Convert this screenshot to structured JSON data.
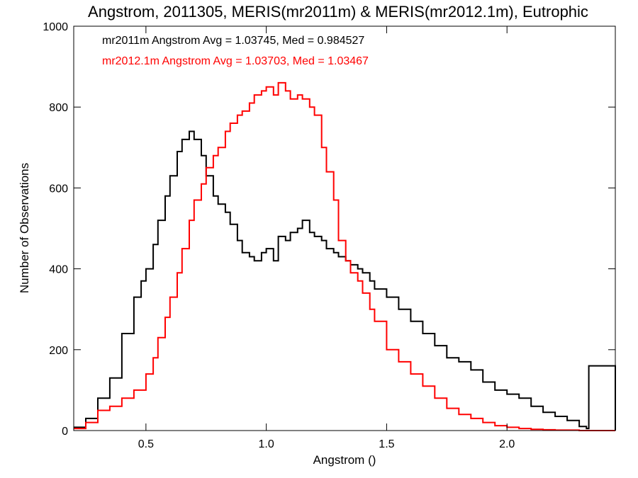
{
  "chart_data": {
    "type": "line",
    "style": "step histogram",
    "title": "Angstrom, 2011305, MERIS(mr2011m) & MERIS(mr2012.1m), Eutrophic",
    "xlabel": "Angstrom ()",
    "ylabel": "Number of Observations",
    "xlim": [
      0.2,
      2.45
    ],
    "ylim": [
      0,
      1000
    ],
    "x_ticks": [
      0.5,
      1.0,
      1.5,
      2.0
    ],
    "x_tick_labels": [
      "0.5",
      "1.0",
      "1.5",
      "2.0"
    ],
    "y_ticks": [
      0,
      200,
      400,
      600,
      800,
      1000
    ],
    "y_tick_labels": [
      "0",
      "200",
      "400",
      "600",
      "800",
      "1000"
    ],
    "grid": false,
    "annotations": [
      {
        "text": "mr2011m Angstrom Avg = 1.03745, Med = 0.984527",
        "color": "#000000"
      },
      {
        "text": "mr2012.1m Angstrom Avg = 1.03703, Med = 1.03467",
        "color": "#ff0000"
      }
    ],
    "series": [
      {
        "color": "#000000",
        "x": [
          0.2,
          0.25,
          0.3,
          0.35,
          0.4,
          0.45,
          0.48,
          0.5,
          0.53,
          0.55,
          0.58,
          0.6,
          0.63,
          0.65,
          0.68,
          0.7,
          0.73,
          0.75,
          0.78,
          0.8,
          0.83,
          0.85,
          0.88,
          0.9,
          0.93,
          0.95,
          0.98,
          1.0,
          1.03,
          1.05,
          1.08,
          1.1,
          1.13,
          1.15,
          1.18,
          1.2,
          1.23,
          1.25,
          1.28,
          1.3,
          1.33,
          1.35,
          1.38,
          1.4,
          1.43,
          1.45,
          1.5,
          1.55,
          1.6,
          1.65,
          1.7,
          1.75,
          1.8,
          1.85,
          1.9,
          1.95,
          2.0,
          2.05,
          2.1,
          2.15,
          2.2,
          2.25,
          2.3,
          2.33,
          2.34,
          2.45
        ],
        "y": [
          8,
          30,
          80,
          130,
          240,
          330,
          370,
          400,
          460,
          520,
          580,
          630,
          690,
          720,
          740,
          720,
          680,
          630,
          580,
          560,
          540,
          510,
          470,
          440,
          430,
          420,
          440,
          450,
          420,
          480,
          470,
          490,
          500,
          520,
          490,
          480,
          470,
          450,
          440,
          430,
          420,
          410,
          400,
          390,
          370,
          350,
          330,
          300,
          270,
          240,
          210,
          180,
          170,
          150,
          120,
          100,
          90,
          80,
          60,
          45,
          35,
          25,
          10,
          5,
          160,
          0
        ]
      },
      {
        "color": "#ff0000",
        "x": [
          0.2,
          0.25,
          0.3,
          0.35,
          0.4,
          0.45,
          0.5,
          0.53,
          0.55,
          0.58,
          0.6,
          0.63,
          0.65,
          0.68,
          0.7,
          0.73,
          0.75,
          0.78,
          0.8,
          0.83,
          0.85,
          0.88,
          0.9,
          0.93,
          0.95,
          0.98,
          1.0,
          1.03,
          1.05,
          1.08,
          1.1,
          1.13,
          1.15,
          1.18,
          1.2,
          1.23,
          1.25,
          1.28,
          1.3,
          1.33,
          1.35,
          1.38,
          1.4,
          1.43,
          1.45,
          1.5,
          1.55,
          1.6,
          1.65,
          1.7,
          1.75,
          1.8,
          1.85,
          1.9,
          1.95,
          2.0,
          2.05,
          2.1,
          2.15,
          2.2,
          2.3,
          2.45
        ],
        "y": [
          5,
          20,
          50,
          60,
          80,
          100,
          140,
          180,
          230,
          280,
          330,
          390,
          450,
          520,
          570,
          610,
          650,
          680,
          700,
          740,
          760,
          780,
          790,
          810,
          830,
          840,
          850,
          830,
          860,
          840,
          820,
          830,
          820,
          800,
          780,
          700,
          640,
          570,
          470,
          420,
          390,
          370,
          340,
          300,
          270,
          200,
          170,
          140,
          110,
          80,
          55,
          40,
          30,
          20,
          12,
          8,
          5,
          3,
          2,
          1,
          0,
          0
        ]
      }
    ]
  }
}
